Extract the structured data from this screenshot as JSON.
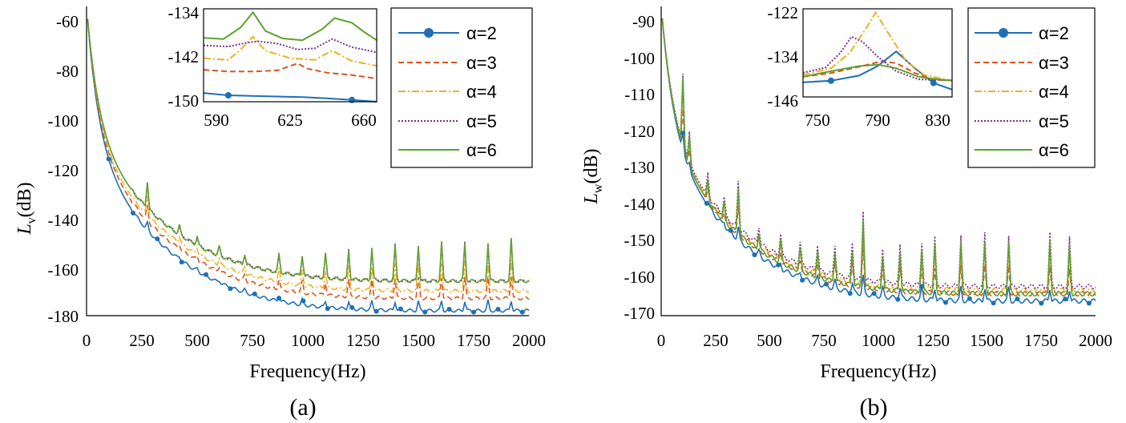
{
  "chart_data": [
    {
      "type": "line",
      "caption": "(a)",
      "xlabel": "Frequency(Hz)",
      "ylabel_main": "L",
      "ylabel_sub": "v",
      "ylabel_unit": "(dB)",
      "xlim": [
        0,
        2000
      ],
      "ylim": [
        -180,
        -55
      ],
      "xticks": [
        0,
        250,
        500,
        750,
        1000,
        1250,
        1500,
        1750,
        2000
      ],
      "yticks": [
        -60,
        -80,
        -100,
        -120,
        -140,
        -160,
        -180
      ],
      "legend": [
        "α=2",
        "α=3",
        "α=4",
        "α=5",
        "α=6"
      ],
      "series": [
        {
          "name": "α=2",
          "color": "#1f6fb5",
          "dash": "",
          "marker": true,
          "start": -55,
          "end": -178,
          "decay": 55
        },
        {
          "name": "α=3",
          "color": "#d9541e",
          "dash": "7,4",
          "marker": false,
          "start": -55,
          "end": -173,
          "decay": 55
        },
        {
          "name": "α=4",
          "color": "#edb120",
          "dash": "9,3,2,3",
          "marker": false,
          "start": -55,
          "end": -170,
          "decay": 55
        },
        {
          "name": "α=5",
          "color": "#7e2f8e",
          "dash": "2,2",
          "marker": false,
          "start": -55,
          "end": -166,
          "decay": 55
        },
        {
          "name": "α=6",
          "color": "#5ea12e",
          "dash": "",
          "marker": false,
          "start": -55,
          "end": -166,
          "decay": 55
        }
      ],
      "inset": {
        "xlim": [
          590,
          660
        ],
        "ylim": [
          -150,
          -134
        ],
        "xticks": [
          590,
          625,
          660
        ],
        "yticks": [
          -134,
          -142,
          -150
        ],
        "series": [
          {
            "name": "α=2",
            "x": [
              590,
              600,
              610,
              620,
              630,
              640,
              650,
              660
            ],
            "y": [
              -148.5,
              -148.9,
              -149.0,
              -149.1,
              -149.2,
              -149.4,
              -149.7,
              -150.0
            ]
          },
          {
            "name": "α=3",
            "x": [
              590,
              600,
              610,
              620,
              628,
              632,
              640,
              650,
              660
            ],
            "y": [
              -144.5,
              -144.8,
              -144.8,
              -144.6,
              -143.4,
              -144.3,
              -145.0,
              -145.4,
              -146.0
            ]
          },
          {
            "name": "α=4",
            "x": [
              590,
              600,
              605,
              610,
              615,
              625,
              635,
              642,
              650,
              660
            ],
            "y": [
              -142.5,
              -142.8,
              -141.0,
              -138.8,
              -141.2,
              -142.5,
              -142.8,
              -141.2,
              -143.0,
              -143.8
            ]
          },
          {
            "name": "α=5",
            "x": [
              590,
              600,
              608,
              612,
              620,
              628,
              635,
              642,
              650,
              660
            ],
            "y": [
              -140.3,
              -140.5,
              -139.8,
              -139.6,
              -140.0,
              -141.0,
              -140.8,
              -139.2,
              -140.6,
              -141.5
            ]
          },
          {
            "name": "α=6",
            "x": [
              590,
              598,
              605,
              610,
              615,
              622,
              630,
              638,
              643,
              650,
              655,
              660
            ],
            "y": [
              -139.0,
              -139.2,
              -137.2,
              -134.6,
              -137.8,
              -139.1,
              -139.4,
              -137.5,
              -135.6,
              -136.4,
              -138.0,
              -139.4
            ]
          }
        ]
      }
    },
    {
      "type": "line",
      "caption": "(b)",
      "xlabel": "Frequency(Hz)",
      "ylabel_main": "L",
      "ylabel_sub": "w",
      "ylabel_unit": "(dB)",
      "xlim": [
        0,
        2000
      ],
      "ylim": [
        -170,
        -85
      ],
      "xticks": [
        0,
        250,
        500,
        750,
        1000,
        1250,
        1500,
        1750,
        2000
      ],
      "yticks": [
        -90,
        -100,
        -110,
        -120,
        -130,
        -140,
        -150,
        -160,
        -170
      ],
      "legend": [
        "α=2",
        "α=3",
        "α=4",
        "α=5",
        "α=6"
      ],
      "series": [
        {
          "name": "α=2",
          "color": "#1f6fb5",
          "dash": "",
          "marker": true,
          "start": -85,
          "end": -166,
          "decay": 60
        },
        {
          "name": "α=3",
          "color": "#d9541e",
          "dash": "7,4",
          "marker": false,
          "start": -85,
          "end": -164,
          "decay": 60
        },
        {
          "name": "α=4",
          "color": "#edb120",
          "dash": "9,3,2,3",
          "marker": false,
          "start": -85,
          "end": -163,
          "decay": 60
        },
        {
          "name": "α=5",
          "color": "#7e2f8e",
          "dash": "2,2",
          "marker": false,
          "start": -85,
          "end": -162,
          "decay": 60
        },
        {
          "name": "α=6",
          "color": "#5ea12e",
          "dash": "",
          "marker": false,
          "start": -85,
          "end": -164,
          "decay": 60
        }
      ],
      "inset": {
        "xlim": [
          750,
          830
        ],
        "ylim": [
          -146,
          -122
        ],
        "xticks": [
          750,
          790,
          830
        ],
        "yticks": [
          -122,
          -134,
          -146
        ],
        "series": [
          {
            "name": "α=2",
            "x": [
              750,
              765,
              780,
              790,
              800,
              810,
              820,
              830
            ],
            "y": [
              -142.0,
              -141.6,
              -140.2,
              -137.6,
              -133.6,
              -138.2,
              -142.2,
              -144.0
            ]
          },
          {
            "name": "α=3",
            "x": [
              750,
              765,
              780,
              792,
              800,
              810,
              820,
              830
            ],
            "y": [
              -140.5,
              -139.5,
              -137.8,
              -136.3,
              -136.8,
              -139.5,
              -141.3,
              -141.5
            ]
          },
          {
            "name": "α=4",
            "x": [
              750,
              765,
              775,
              783,
              789,
              795,
              805,
              815,
              830
            ],
            "y": [
              -140.0,
              -138.2,
              -134.0,
              -128.0,
              -123.0,
              -128.0,
              -136.0,
              -140.0,
              -141.6
            ]
          },
          {
            "name": "α=5",
            "x": [
              750,
              762,
              770,
              776,
              782,
              790,
              800,
              812,
              830
            ],
            "y": [
              -139.4,
              -138.0,
              -134.0,
              -129.6,
              -131.0,
              -135.0,
              -139.0,
              -141.2,
              -141.5
            ]
          },
          {
            "name": "α=6",
            "x": [
              750,
              765,
              780,
              790,
              800,
              812,
              822,
              830
            ],
            "y": [
              -140.5,
              -139.0,
              -137.6,
              -137.2,
              -138.2,
              -140.5,
              -141.2,
              -141.5
            ]
          }
        ]
      }
    }
  ]
}
